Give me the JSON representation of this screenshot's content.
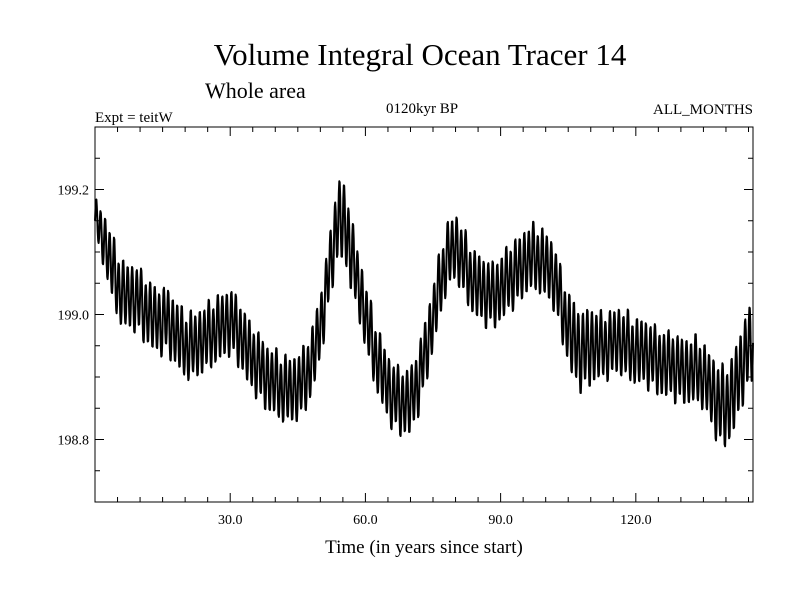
{
  "chart_data": {
    "type": "line",
    "title": "Volume Integral Ocean Tracer 14",
    "subtitle": "Whole area",
    "expt_label": "Expt = teitW",
    "period_label": "0120kyr BP",
    "months_label": "ALL_MONTHS",
    "xlabel": "Time (in years since start)",
    "ylabel": "",
    "xlim": [
      0,
      146
    ],
    "ylim": [
      198.7,
      199.3
    ],
    "x_ticks": [
      30,
      60,
      90,
      120
    ],
    "x_tick_labels": [
      "30.0",
      "60.0",
      "90.0",
      "120.0"
    ],
    "y_ticks": [
      198.8,
      199.0,
      199.2
    ],
    "y_tick_labels": [
      "198.8",
      "199.0",
      "199.2"
    ],
    "grid": false,
    "legend": "none",
    "line_color": "#000000",
    "series": [
      {
        "x": [
          0,
          2,
          4,
          6,
          8,
          10,
          12,
          14,
          16,
          18,
          20,
          22,
          24,
          26,
          28,
          30,
          32,
          34,
          36,
          38,
          40,
          42,
          44,
          46,
          48,
          50,
          52,
          54,
          56,
          58,
          60,
          62,
          64,
          66,
          68,
          70,
          72,
          74,
          76,
          78,
          80,
          82,
          84,
          86,
          88,
          90,
          92,
          94,
          96,
          98,
          100,
          102,
          104,
          106,
          108,
          110,
          112,
          114,
          116,
          118,
          120,
          122,
          124,
          126,
          128,
          130,
          132,
          134,
          136,
          138,
          140,
          142,
          144,
          146
        ],
        "mean": [
          199.15,
          199.12,
          199.07,
          199.03,
          199.03,
          199.02,
          199.0,
          198.99,
          198.99,
          198.97,
          198.95,
          198.95,
          198.96,
          198.97,
          198.98,
          198.99,
          198.97,
          198.94,
          198.92,
          198.9,
          198.89,
          198.88,
          198.88,
          198.89,
          198.92,
          198.98,
          199.07,
          199.16,
          199.13,
          199.06,
          199.0,
          198.94,
          198.9,
          198.87,
          198.86,
          198.86,
          198.9,
          198.96,
          199.03,
          199.09,
          199.11,
          199.08,
          199.05,
          199.04,
          199.03,
          199.04,
          199.06,
          199.07,
          199.09,
          199.09,
          199.08,
          199.06,
          199.0,
          198.96,
          198.94,
          198.95,
          198.95,
          198.95,
          198.96,
          198.95,
          198.94,
          198.94,
          198.93,
          198.92,
          198.92,
          198.91,
          198.91,
          198.91,
          198.89,
          198.86,
          198.85,
          198.88,
          198.93,
          198.96
        ],
        "amplitude": [
          0.03,
          0.04,
          0.05,
          0.05,
          0.05,
          0.05,
          0.05,
          0.05,
          0.05,
          0.05,
          0.05,
          0.05,
          0.05,
          0.05,
          0.05,
          0.05,
          0.05,
          0.05,
          0.05,
          0.05,
          0.05,
          0.05,
          0.05,
          0.05,
          0.05,
          0.05,
          0.05,
          0.06,
          0.06,
          0.05,
          0.05,
          0.05,
          0.05,
          0.05,
          0.05,
          0.05,
          0.05,
          0.05,
          0.05,
          0.05,
          0.05,
          0.05,
          0.05,
          0.05,
          0.05,
          0.05,
          0.05,
          0.05,
          0.05,
          0.05,
          0.05,
          0.05,
          0.05,
          0.06,
          0.06,
          0.06,
          0.05,
          0.05,
          0.05,
          0.05,
          0.05,
          0.05,
          0.05,
          0.05,
          0.05,
          0.05,
          0.05,
          0.05,
          0.05,
          0.06,
          0.06,
          0.06,
          0.06,
          0.06
        ],
        "period": 1
      }
    ]
  }
}
